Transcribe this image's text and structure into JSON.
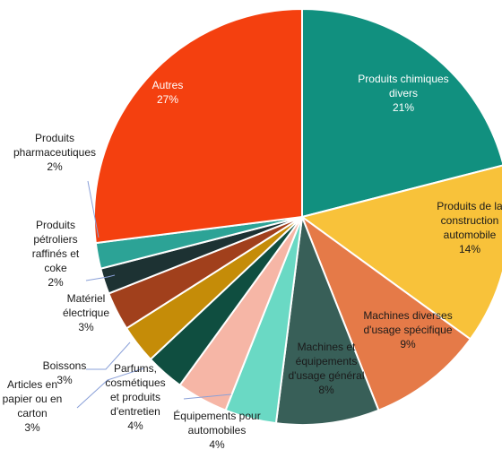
{
  "chart_data": {
    "type": "pie",
    "slices": [
      {
        "label": "Produits chimiques divers",
        "lines": [
          "Produits chimiques",
          "divers",
          "21%"
        ],
        "value": 21,
        "color": "#11907f"
      },
      {
        "label": "Produits de la construction automobile",
        "lines": [
          "Produits de la",
          "construction",
          "automobile",
          "14%"
        ],
        "value": 14,
        "color": "#f8c23a"
      },
      {
        "label": "Machines diverses d'usage spécifique",
        "lines": [
          "Machines diverses",
          "d'usage spécifique",
          "9%"
        ],
        "value": 9,
        "color": "#e57a48"
      },
      {
        "label": "Machines et équipements d'usage général",
        "lines": [
          "Machines et",
          "équipements",
          "d'usage général",
          "8%"
        ],
        "value": 8,
        "color": "#385f58"
      },
      {
        "label": "Équipements pour automobiles",
        "lines": [
          "Équipements pour",
          "automobiles",
          "4%"
        ],
        "value": 4,
        "color": "#6ad9c4"
      },
      {
        "label": "Parfums, cosmétiques et produits d'entretien",
        "lines": [
          "Parfums,",
          "cosmétiques",
          "et produits",
          "d'entretien",
          "4%"
        ],
        "value": 4,
        "color": "#f6b6a6"
      },
      {
        "label": "Articles en papier ou en carton",
        "lines": [
          "Articles en",
          "papier ou en",
          "carton",
          "3%"
        ],
        "value": 3,
        "color": "#0f4e40"
      },
      {
        "label": "Boissons",
        "lines": [
          "Boissons",
          "3%"
        ],
        "value": 3,
        "color": "#c58c08"
      },
      {
        "label": "Matériel électrique",
        "lines": [
          "Matériel",
          "électrique",
          "3%"
        ],
        "value": 3,
        "color": "#a1401c"
      },
      {
        "label": "Produits pétroliers raffinés et coke",
        "lines": [
          "Produits",
          "pétroliers",
          "raffinés et",
          "coke",
          "2%"
        ],
        "value": 2,
        "color": "#1d3233"
      },
      {
        "label": "Produits pharmaceutiques",
        "lines": [
          "Produits",
          "pharmaceutiques",
          "2%"
        ],
        "value": 2,
        "color": "#2ca396"
      },
      {
        "label": "Autres",
        "lines": [
          "Autres",
          "27%"
        ],
        "value": 27,
        "color": "#f4400f"
      }
    ]
  }
}
